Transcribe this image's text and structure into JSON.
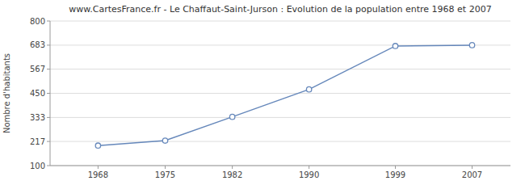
{
  "chart_data": {
    "type": "line",
    "title": "www.CartesFrance.fr - Le Chaffaut-Saint-Jurson : Evolution de la population entre 1968 et 2007",
    "y_label": "Nombre d'habitants",
    "x": [
      1968,
      1975,
      1982,
      1990,
      1999,
      2007
    ],
    "values": [
      197,
      221,
      336,
      469,
      679,
      683
    ],
    "xlim": [
      1963,
      2011
    ],
    "xticks": [
      1968,
      1975,
      1982,
      1990,
      1999,
      2007
    ],
    "ylim": [
      100,
      800
    ],
    "yticks": [
      100,
      217,
      333,
      450,
      567,
      683,
      800
    ],
    "color": "#6688bb",
    "marker": "circle",
    "grid": true
  }
}
